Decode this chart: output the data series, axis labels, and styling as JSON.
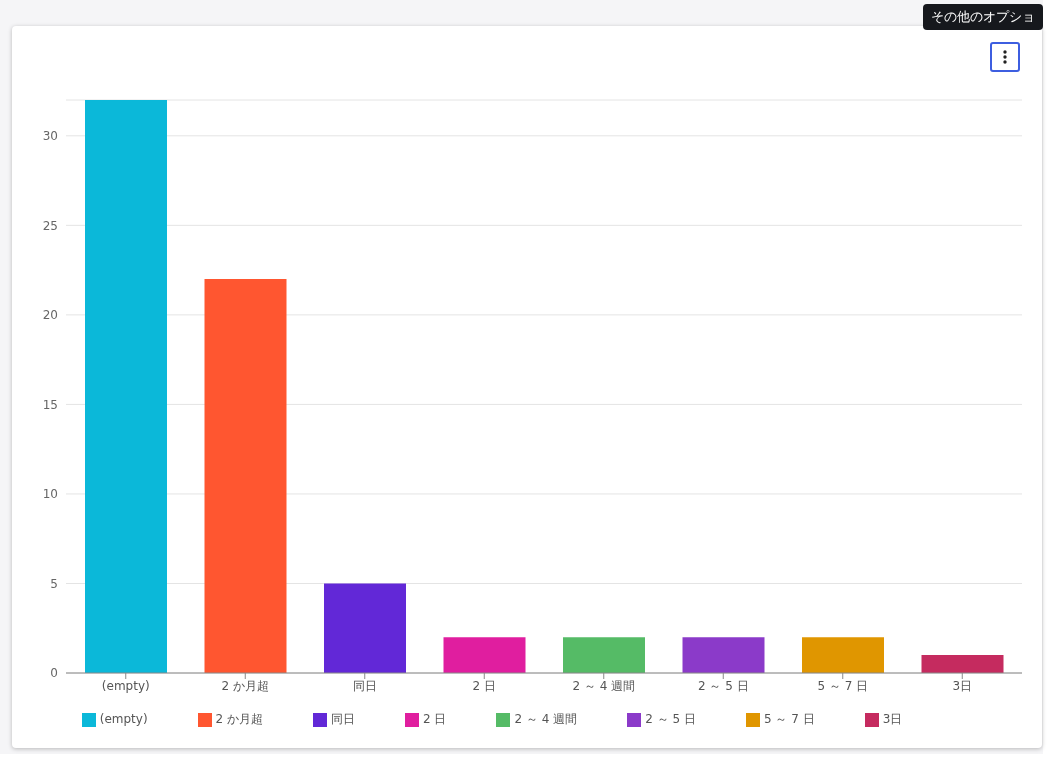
{
  "chart_data": {
    "type": "bar",
    "categories": [
      "(empty)",
      "2 か月超",
      "同日",
      "2 日",
      "2 ～ 4 週間",
      "2 ～ 5 日",
      "5 ～ 7 日",
      "3日"
    ],
    "series": [
      {
        "name": "(empty)",
        "color": "#0bb8d9",
        "values": [
          32,
          null,
          null,
          null,
          null,
          null,
          null,
          null
        ]
      },
      {
        "name": "2 か月超",
        "color": "#ff5630",
        "values": [
          null,
          22,
          null,
          null,
          null,
          null,
          null,
          null
        ]
      },
      {
        "name": "同日",
        "color": "#6228d7",
        "values": [
          null,
          null,
          5,
          null,
          null,
          null,
          null,
          null
        ]
      },
      {
        "name": "2 日",
        "color": "#e01e9f",
        "values": [
          null,
          null,
          null,
          2,
          null,
          null,
          null,
          null
        ]
      },
      {
        "name": "2 ～ 4 週間",
        "color": "#55bb66",
        "values": [
          null,
          null,
          null,
          null,
          2,
          null,
          null,
          null
        ]
      },
      {
        "name": "2 ～ 5 日",
        "color": "#8b3ac9",
        "values": [
          null,
          null,
          null,
          null,
          null,
          2,
          null,
          null
        ]
      },
      {
        "name": "5 ～ 7 日",
        "color": "#e09600",
        "values": [
          null,
          null,
          null,
          null,
          null,
          null,
          2,
          null
        ]
      },
      {
        "name": "3日",
        "color": "#c52b5f",
        "values": [
          null,
          null,
          null,
          null,
          null,
          null,
          null,
          1
        ]
      }
    ],
    "stacked": true,
    "ylim": [
      0,
      32
    ],
    "yticks": [
      0,
      5,
      10,
      15,
      20,
      25,
      30
    ],
    "grid": "y",
    "legend": "bottom",
    "annotations": [
      "その他のオプショ"
    ]
  }
}
